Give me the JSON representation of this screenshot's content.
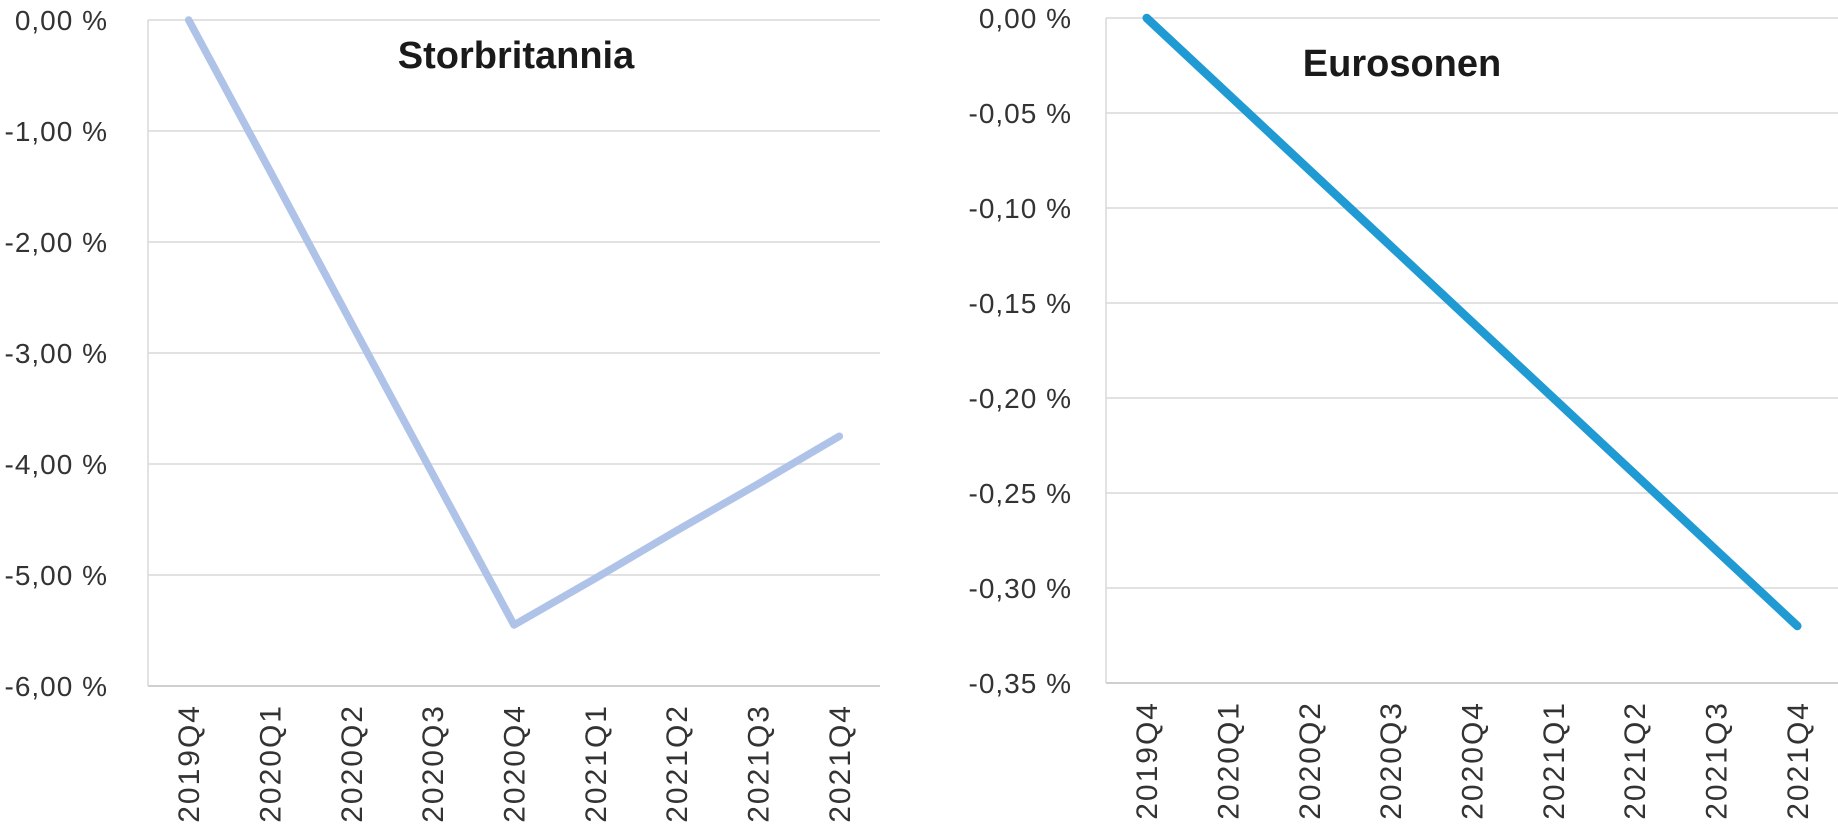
{
  "figure": {
    "background": "#ffffff",
    "grid_color": "#d9d9d9",
    "axis_line_color": "#cfcfcf",
    "axis_text_color": "#333333",
    "title_text_color": "#1a1a1a"
  },
  "chart_data": [
    {
      "type": "line",
      "title": "Storbritannia",
      "categories": [
        "2019Q4",
        "2020Q1",
        "2020Q2",
        "2020Q3",
        "2020Q4",
        "2021Q1",
        "2021Q2",
        "2021Q3",
        "2021Q4"
      ],
      "series": [
        {
          "name": "Storbritannia",
          "values": [
            0.0,
            -1.36,
            -2.73,
            -4.09,
            -5.45,
            -5.03,
            -4.6,
            -4.18,
            -3.75
          ]
        }
      ],
      "ylim": [
        -6.0,
        0.0
      ],
      "y_ticks": [
        0,
        -1,
        -2,
        -3,
        -4,
        -5,
        -6
      ],
      "y_tick_labels": [
        "0,00 %",
        "-1,00 %",
        "-2,00 %",
        "-3,00 %",
        "-4,00 %",
        "-5,00 %",
        "-6,00 %"
      ],
      "line_color": "#afc3e8",
      "grid": true,
      "legend": false,
      "x_label_rotation": -90
    },
    {
      "type": "line",
      "title": "Eurosonen",
      "categories": [
        "2019Q4",
        "2020Q1",
        "2020Q2",
        "2020Q3",
        "2020Q4",
        "2021Q1",
        "2021Q2",
        "2021Q3",
        "2021Q4"
      ],
      "series": [
        {
          "name": "Eurosonen",
          "values": [
            0.0,
            -0.04,
            -0.08,
            -0.12,
            -0.16,
            -0.2,
            -0.24,
            -0.28,
            -0.32
          ]
        }
      ],
      "ylim": [
        -0.35,
        0.0
      ],
      "y_ticks": [
        0,
        -0.05,
        -0.1,
        -0.15,
        -0.2,
        -0.25,
        -0.3,
        -0.35
      ],
      "y_tick_labels": [
        "0,00 %",
        "-0,05 %",
        "-0,10 %",
        "-0,15 %",
        "-0,20 %",
        "-0,25 %",
        "-0,30 %",
        "-0,35 %"
      ],
      "line_color": "#1f9ad2",
      "grid": true,
      "legend": false,
      "x_label_rotation": -90
    }
  ]
}
